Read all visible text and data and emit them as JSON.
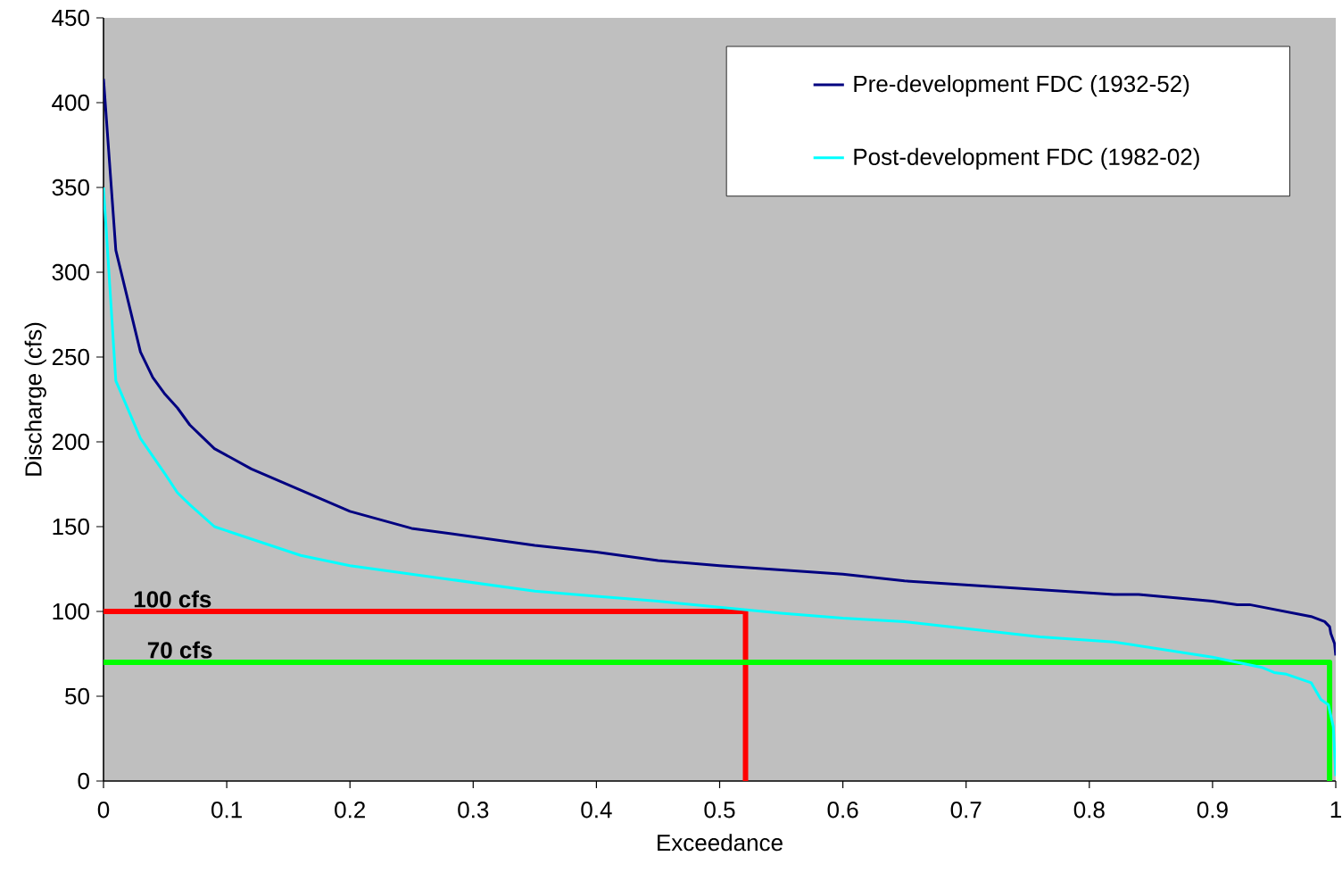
{
  "chart_data": {
    "type": "line",
    "xlabel": "Exceedance",
    "ylabel": "Discharge (cfs)",
    "xlim": [
      0,
      1
    ],
    "ylim": [
      0,
      450
    ],
    "xticks": [
      0,
      0.1,
      0.2,
      0.3,
      0.4,
      0.5,
      0.6,
      0.7,
      0.8,
      0.9,
      1
    ],
    "yticks": [
      0,
      50,
      100,
      150,
      200,
      250,
      300,
      350,
      400,
      450
    ],
    "legend": "top right",
    "grid": false,
    "marker": "none",
    "line_style": "solid",
    "series": [
      {
        "name": "Pre-development FDC (1932-52)",
        "color": "#000080",
        "x": [
          0,
          0.01,
          0.03,
          0.04,
          0.05,
          0.06,
          0.07,
          0.08,
          0.09,
          0.1,
          0.12,
          0.2,
          0.25,
          0.35,
          0.4,
          0.45,
          0.5,
          0.6,
          0.65,
          0.82,
          0.84,
          0.9,
          0.92,
          0.93,
          0.98,
          0.991,
          0.995,
          0.996,
          0.999,
          1
        ],
        "values": [
          414,
          313,
          253,
          238,
          228,
          220,
          210,
          203,
          196,
          192,
          184,
          159,
          149,
          139,
          135,
          130,
          127,
          122,
          118,
          110,
          110,
          106,
          104,
          104,
          97,
          94,
          91,
          87,
          81,
          74
        ]
      },
      {
        "name": "Post-development FDC (1982-02)",
        "color": "#00ffff",
        "x": [
          0,
          0.01,
          0.03,
          0.05,
          0.06,
          0.07,
          0.09,
          0.16,
          0.2,
          0.35,
          0.4,
          0.45,
          0.55,
          0.6,
          0.65,
          0.76,
          0.82,
          0.9,
          0.94,
          0.95,
          0.96,
          0.98,
          0.988,
          0.994,
          0.998,
          1
        ],
        "values": [
          350,
          236,
          202,
          181,
          170,
          163,
          150,
          133,
          127,
          112,
          109,
          106,
          99,
          96,
          94,
          85,
          82,
          73,
          67,
          64,
          63,
          58,
          48,
          45,
          32,
          3
        ]
      },
      {
        "color": "#ff0000",
        "x": [
          0,
          0.521,
          0.521
        ],
        "values": [
          100,
          100,
          0
        ]
      },
      {
        "color": "#00ff00",
        "x": [
          0,
          0.995,
          0.995
        ],
        "values": [
          70,
          70,
          0
        ]
      }
    ],
    "annotations": [
      {
        "text": "100 cfs",
        "x": 0.056,
        "y": 100
      },
      {
        "text": "70 cfs",
        "x": 0.062,
        "y": 70
      }
    ]
  }
}
